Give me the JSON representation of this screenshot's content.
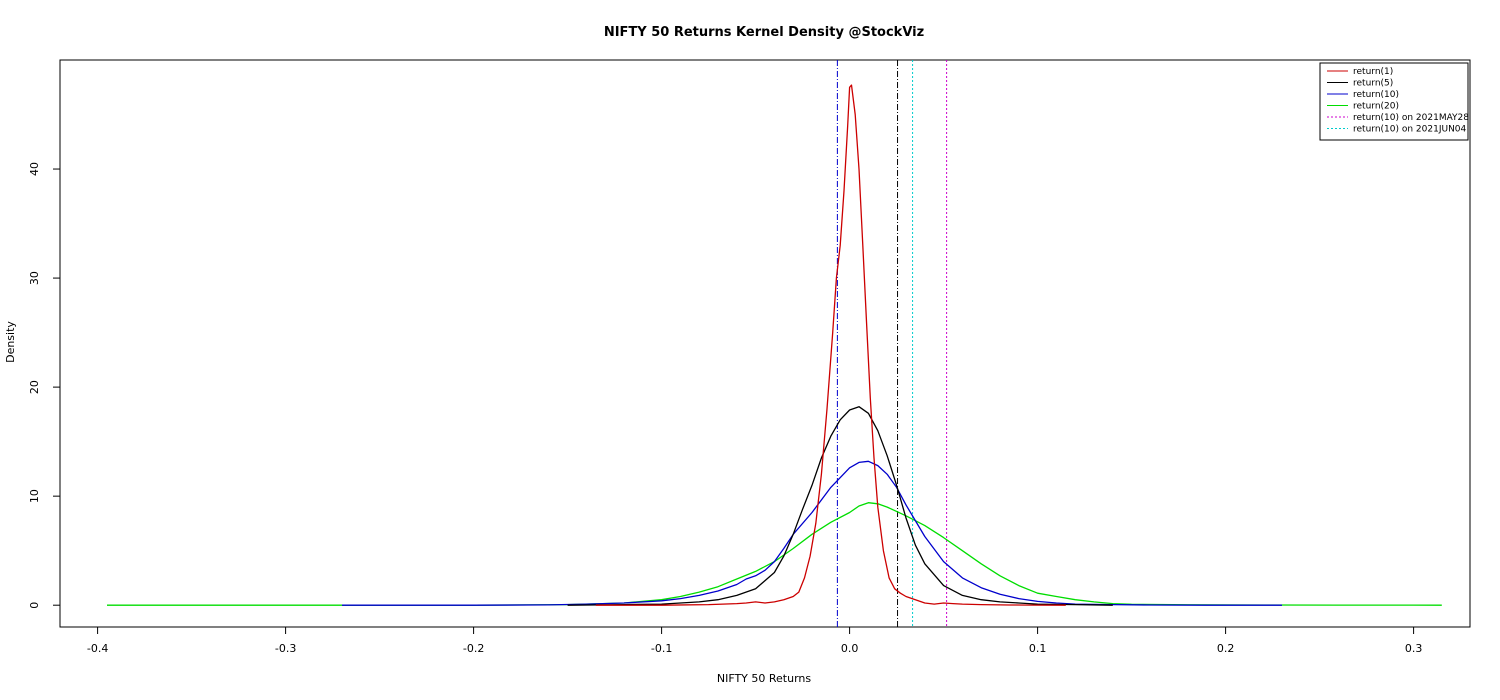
{
  "chart_data": {
    "type": "line",
    "title": "NIFTY 50 Returns Kernel Density @StockViz",
    "xlabel": "NIFTY 50 Returns",
    "ylabel": "Density",
    "xlim": [
      -0.42,
      0.33
    ],
    "ylim": [
      -2,
      50
    ],
    "x_ticks": [
      -0.4,
      -0.3,
      -0.2,
      -0.1,
      0,
      0.1,
      0.2,
      0.3
    ],
    "x_tick_labels": [
      "-0.4",
      "-0.3",
      "-0.2",
      "-0.1",
      "0.0",
      "0.1",
      "0.2",
      "0.3"
    ],
    "y_ticks": [
      0,
      10,
      20,
      30,
      40
    ],
    "y_tick_labels": [
      "0",
      "10",
      "20",
      "30",
      "40"
    ],
    "grid": false,
    "legend_position": "top-right",
    "series": [
      {
        "name": "return(1)",
        "color": "#cc0000",
        "style": "solid",
        "x": [
          -0.135,
          -0.1,
          -0.075,
          -0.06,
          -0.055,
          -0.05,
          -0.045,
          -0.04,
          -0.035,
          -0.03,
          -0.027,
          -0.024,
          -0.021,
          -0.018,
          -0.015,
          -0.012,
          -0.009,
          -0.007,
          -0.005,
          -0.003,
          -0.001,
          0.0,
          0.001,
          0.003,
          0.005,
          0.007,
          0.009,
          0.011,
          0.013,
          0.015,
          0.018,
          0.021,
          0.024,
          0.027,
          0.03,
          0.035,
          0.04,
          0.045,
          0.05,
          0.055,
          0.06,
          0.07,
          0.085,
          0.1,
          0.115
        ],
        "y": [
          0,
          0,
          0.05,
          0.15,
          0.2,
          0.3,
          0.2,
          0.3,
          0.5,
          0.8,
          1.2,
          2.5,
          4.5,
          7.5,
          12,
          18,
          25,
          30,
          33,
          38,
          44,
          47.5,
          47.7,
          45,
          40,
          33,
          26,
          19,
          13.5,
          9,
          5,
          2.5,
          1.5,
          1.1,
          0.8,
          0.5,
          0.2,
          0.1,
          0.2,
          0.15,
          0.1,
          0.05,
          0.02,
          0.01,
          0
        ]
      },
      {
        "name": "return(5)",
        "color": "#000000",
        "style": "solid",
        "x": [
          -0.15,
          -0.12,
          -0.1,
          -0.09,
          -0.08,
          -0.07,
          -0.06,
          -0.05,
          -0.04,
          -0.035,
          -0.03,
          -0.025,
          -0.02,
          -0.015,
          -0.01,
          -0.005,
          0.0,
          0.005,
          0.01,
          0.015,
          0.02,
          0.025,
          0.03,
          0.035,
          0.04,
          0.05,
          0.06,
          0.07,
          0.08,
          0.09,
          0.1,
          0.12,
          0.14
        ],
        "y": [
          0,
          0.05,
          0.1,
          0.2,
          0.3,
          0.5,
          0.9,
          1.5,
          3,
          4.5,
          6.5,
          8.8,
          11,
          13.5,
          15.5,
          17,
          17.9,
          18.2,
          17.6,
          16,
          13.7,
          11,
          8,
          5.5,
          3.8,
          1.8,
          0.9,
          0.5,
          0.3,
          0.2,
          0.1,
          0.05,
          0
        ]
      },
      {
        "name": "return(10)",
        "color": "#0000cc",
        "style": "solid",
        "x": [
          -0.27,
          -0.2,
          -0.16,
          -0.14,
          -0.12,
          -0.1,
          -0.09,
          -0.08,
          -0.07,
          -0.06,
          -0.055,
          -0.05,
          -0.045,
          -0.04,
          -0.035,
          -0.03,
          -0.02,
          -0.01,
          0.0,
          0.005,
          0.01,
          0.015,
          0.02,
          0.025,
          0.03,
          0.04,
          0.05,
          0.06,
          0.07,
          0.08,
          0.09,
          0.1,
          0.11,
          0.12,
          0.14,
          0.16,
          0.19,
          0.23
        ],
        "y": [
          0,
          0,
          0.03,
          0.1,
          0.2,
          0.4,
          0.6,
          0.9,
          1.3,
          1.9,
          2.4,
          2.7,
          3.2,
          4,
          5.2,
          6.5,
          8.5,
          10.8,
          12.6,
          13.1,
          13.2,
          12.8,
          12,
          10.8,
          9.2,
          6.3,
          4,
          2.5,
          1.6,
          1,
          0.6,
          0.35,
          0.2,
          0.1,
          0.05,
          0.02,
          0,
          0
        ]
      },
      {
        "name": "return(20)",
        "color": "#00dd00",
        "style": "solid",
        "x": [
          -0.395,
          -0.3,
          -0.2,
          -0.15,
          -0.12,
          -0.1,
          -0.09,
          -0.08,
          -0.07,
          -0.06,
          -0.05,
          -0.04,
          -0.03,
          -0.02,
          -0.01,
          0.0,
          0.005,
          0.01,
          0.015,
          0.02,
          0.03,
          0.04,
          0.05,
          0.06,
          0.07,
          0.08,
          0.09,
          0.1,
          0.11,
          0.12,
          0.13,
          0.14,
          0.15,
          0.18,
          0.22,
          0.26,
          0.3,
          0.315
        ],
        "y": [
          0,
          0,
          0,
          0.05,
          0.2,
          0.5,
          0.8,
          1.2,
          1.7,
          2.4,
          3.1,
          4,
          5.2,
          6.5,
          7.6,
          8.5,
          9.1,
          9.4,
          9.3,
          9,
          8.2,
          7.3,
          6.2,
          5,
          3.8,
          2.7,
          1.8,
          1.1,
          0.8,
          0.5,
          0.3,
          0.15,
          0.08,
          0.04,
          0.02,
          0.01,
          0.01,
          0
        ]
      },
      {
        "name": "return(10) on 2021MAY28",
        "color": "#cc00cc",
        "style": "dotted",
        "vline": 0.0516
      },
      {
        "name": "return(10) on 2021JUN04",
        "color": "#00cccc",
        "style": "dotted",
        "vline": 0.0335
      }
    ],
    "reference_lines": [
      {
        "x": -0.0065,
        "color": "#0000cc",
        "style": "dashdot"
      },
      {
        "x": 0.0255,
        "color": "#000000",
        "style": "dashdot"
      }
    ]
  }
}
